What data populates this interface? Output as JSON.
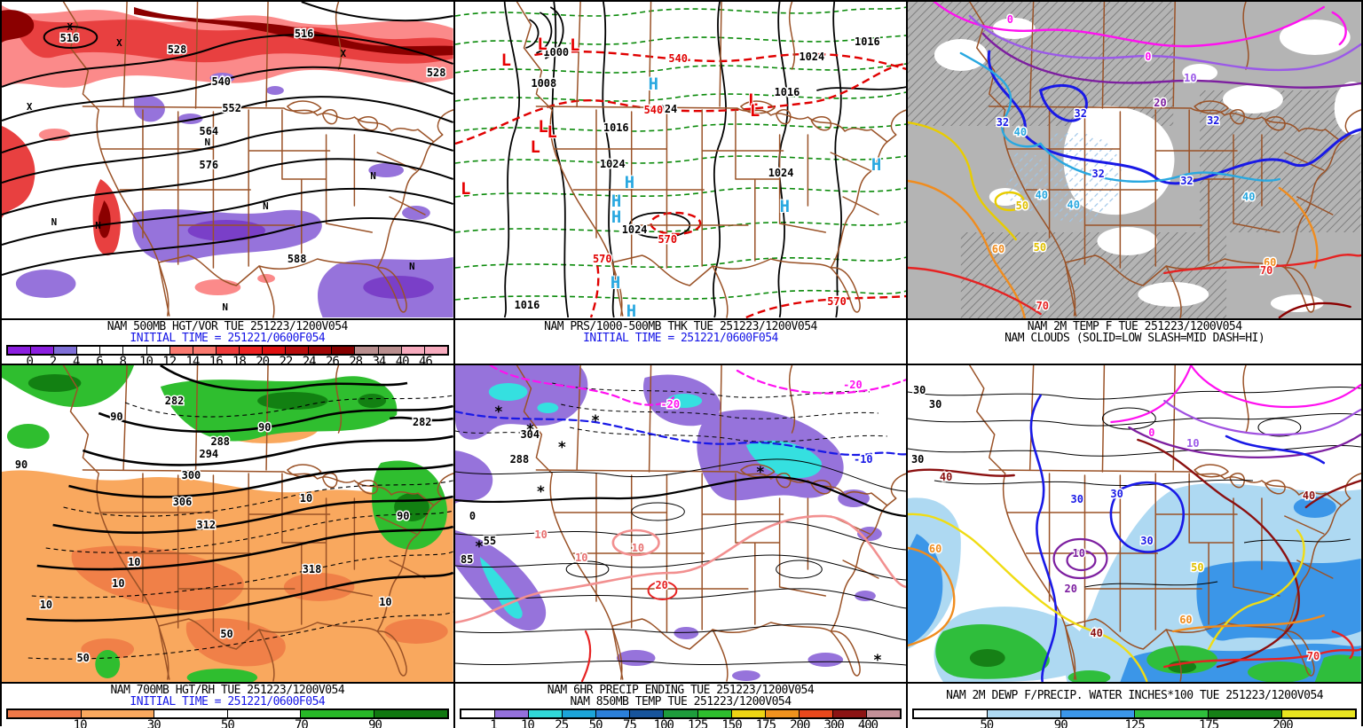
{
  "panels": [
    {
      "name": "500mb-hgt-vor",
      "captions": [
        {
          "text": "NAM 500MB HGT/VOR TUE 251223/1200V054",
          "color": "#000000"
        },
        {
          "text": "INITIAL TIME = 251221/0600F054",
          "color": "#1414E6"
        }
      ],
      "colorbar": {
        "ticks": [
          "0",
          "2",
          "4",
          "6",
          "8",
          "10",
          "12",
          "14",
          "16",
          "18",
          "20",
          "22",
          "24",
          "26",
          "28",
          "34",
          "40",
          "46"
        ],
        "segments": [
          "#8C1FE0",
          "#8C1FE0",
          "#8070D8",
          "#FFFFFF",
          "#FFFFFF",
          "#FFFFFF",
          "#FFFFFF",
          "#FB7A70",
          "#FB7A70",
          "#EE3A3A",
          "#EE2222",
          "#E01010",
          "#B80C0C",
          "#A00606",
          "#860000",
          "#B98E8E",
          "#B98E8E",
          "#F7ABBE",
          "#F7ABBE"
        ]
      },
      "labels": [
        {
          "t": "516",
          "c": "#000000"
        },
        {
          "t": "528",
          "c": "#000000"
        },
        {
          "t": "540",
          "c": "#000000"
        },
        {
          "t": "552",
          "c": "#000000"
        },
        {
          "t": "564",
          "c": "#000000"
        },
        {
          "t": "576",
          "c": "#000000"
        },
        {
          "t": "588",
          "c": "#000000"
        },
        {
          "t": "516",
          "c": "#000000"
        },
        {
          "t": "528",
          "c": "#000000"
        }
      ],
      "symbols": {
        "max": "X",
        "min": "N"
      }
    },
    {
      "name": "surface-pressure-thickness",
      "captions": [
        {
          "text": "NAM PRS/1000-500MB THK TUE 251223/1200V054",
          "color": "#000000"
        },
        {
          "text": "INITIAL TIME = 251221/0600F054",
          "color": "#1414E6"
        }
      ],
      "labels": [
        {
          "t": "1000",
          "c": "#000000"
        },
        {
          "t": "1008",
          "c": "#000000"
        },
        {
          "t": "1016",
          "c": "#000000"
        },
        {
          "t": "1024",
          "c": "#000000"
        },
        {
          "t": "1016",
          "c": "#000000"
        },
        {
          "t": "1024",
          "c": "#000000"
        },
        {
          "t": "1024",
          "c": "#000000"
        },
        {
          "t": "1024",
          "c": "#000000"
        },
        {
          "t": "1016",
          "c": "#000000"
        },
        {
          "t": "1024",
          "c": "#000000"
        },
        {
          "t": "1016",
          "c": "#000000"
        },
        {
          "t": "540",
          "c": "#E00000"
        },
        {
          "t": "540",
          "c": "#E00000"
        },
        {
          "t": "570",
          "c": "#E00000"
        },
        {
          "t": "570",
          "c": "#E00000"
        },
        {
          "t": "570",
          "c": "#E00000"
        }
      ],
      "symbols": {
        "high": "H",
        "low": "L"
      },
      "high_color": "#29A8E0",
      "low_color": "#E60000"
    },
    {
      "name": "2m-temp-clouds",
      "captions": [
        {
          "text": "NAM 2M TEMP F TUE 251223/1200V054",
          "color": "#000000"
        },
        {
          "text": "NAM CLOUDS (SOLID=LOW SLASH=MID DASH=HI)",
          "color": "#000000"
        }
      ],
      "labels": [
        {
          "t": "0",
          "c": "#FF10F0"
        },
        {
          "t": "0",
          "c": "#FF10F0"
        },
        {
          "t": "10",
          "c": "#9B59E8"
        },
        {
          "t": "20",
          "c": "#7D1FA0"
        },
        {
          "t": "32",
          "c": "#1919E6"
        },
        {
          "t": "32",
          "c": "#1919E6"
        },
        {
          "t": "32",
          "c": "#1919E6"
        },
        {
          "t": "32",
          "c": "#1919E6"
        },
        {
          "t": "32",
          "c": "#1919E6"
        },
        {
          "t": "40",
          "c": "#29A8E0"
        },
        {
          "t": "40",
          "c": "#29A8E0"
        },
        {
          "t": "40",
          "c": "#29A8E0"
        },
        {
          "t": "40",
          "c": "#29A8E0"
        },
        {
          "t": "50",
          "c": "#E0C000"
        },
        {
          "t": "50",
          "c": "#E0C000"
        },
        {
          "t": "60",
          "c": "#F08C1E"
        },
        {
          "t": "60",
          "c": "#F08C1E"
        },
        {
          "t": "70",
          "c": "#E62222"
        },
        {
          "t": "70",
          "c": "#E62222"
        }
      ]
    },
    {
      "name": "700mb-hgt-rh",
      "captions": [
        {
          "text": "NAM 700MB HGT/RH TUE 251223/1200V054",
          "color": "#000000"
        },
        {
          "text": "INITIAL TIME = 251221/0600F054",
          "color": "#1414E6"
        }
      ],
      "colorbar": {
        "ticks": [
          "10",
          "30",
          "50",
          "70",
          "90"
        ],
        "segments": [
          "#F07848",
          "#F9A85E",
          "#FFFFFF",
          "#FFFFFF",
          "#28B828",
          "#107810"
        ]
      },
      "labels": [
        {
          "t": "282",
          "c": "#000000"
        },
        {
          "t": "282",
          "c": "#000000"
        },
        {
          "t": "288",
          "c": "#000000"
        },
        {
          "t": "294",
          "c": "#000000"
        },
        {
          "t": "300",
          "c": "#000000"
        },
        {
          "t": "306",
          "c": "#000000"
        },
        {
          "t": "312",
          "c": "#000000"
        },
        {
          "t": "318",
          "c": "#000000"
        },
        {
          "t": "10",
          "c": "#000000"
        },
        {
          "t": "10",
          "c": "#000000"
        },
        {
          "t": "10",
          "c": "#000000"
        },
        {
          "t": "10",
          "c": "#000000"
        },
        {
          "t": "10",
          "c": "#000000"
        },
        {
          "t": "50",
          "c": "#000000"
        },
        {
          "t": "50",
          "c": "#000000"
        },
        {
          "t": "90",
          "c": "#000000"
        },
        {
          "t": "90",
          "c": "#000000"
        },
        {
          "t": "90",
          "c": "#000000"
        },
        {
          "t": "90",
          "c": "#000000"
        }
      ]
    },
    {
      "name": "6hr-precip-850mb-temp",
      "captions": [
        {
          "text": "NAM 6HR PRECIP ENDING TUE 251223/1200V054",
          "color": "#000000"
        },
        {
          "text": "NAM 850MB TEMP TUE 251223/1200V054",
          "color": "#000000"
        }
      ],
      "colorbar": {
        "ticks": [
          "1",
          "10",
          "25",
          "50",
          "75",
          "100",
          "125",
          "150",
          "175",
          "200",
          "300",
          "400"
        ],
        "segments": [
          "#FFFFFF",
          "#9470DB",
          "#30D8D8",
          "#1CA4D8",
          "#2B7FD9",
          "#17549C",
          "#1E9C3C",
          "#2EBE2E",
          "#EDD514",
          "#F0921E",
          "#E8481C",
          "#8C1414",
          "#C49098"
        ]
      },
      "labels": [
        {
          "t": "-20",
          "c": "#FF10F0"
        },
        {
          "t": "-20",
          "c": "#FF10F0"
        },
        {
          "t": "-10",
          "c": "#1919E6"
        },
        {
          "t": "0",
          "c": "#000000"
        },
        {
          "t": "10",
          "c": "#E87070"
        },
        {
          "t": "10",
          "c": "#E87070"
        },
        {
          "t": "10",
          "c": "#E87070"
        },
        {
          "t": "20",
          "c": "#E62222"
        },
        {
          "t": "304",
          "c": "#000000"
        },
        {
          "t": "288",
          "c": "#000000"
        },
        {
          "t": "85",
          "c": "#000000"
        },
        {
          "t": "55",
          "c": "#000000"
        }
      ],
      "symbols": {
        "snow": "*"
      }
    },
    {
      "name": "2m-dewpoint-precip-water",
      "captions": [
        {
          "text": "NAM 2M DEWP F/PRECIP. WATER INCHES*100 TUE 251223/1200V054",
          "color": "#000000"
        }
      ],
      "colorbar": {
        "ticks": [
          "50",
          "90",
          "125",
          "175",
          "200"
        ],
        "segments": [
          "#FFFFFF",
          "#AED9F2",
          "#3B96E8",
          "#2FBE3C",
          "#168016",
          "#E8E420"
        ]
      },
      "labels": [
        {
          "t": "30",
          "c": "#000000"
        },
        {
          "t": "30",
          "c": "#000000"
        },
        {
          "t": "30",
          "c": "#000000"
        },
        {
          "t": "30",
          "c": "#1919E6"
        },
        {
          "t": "30",
          "c": "#1919E6"
        },
        {
          "t": "30",
          "c": "#1919E6"
        },
        {
          "t": "0",
          "c": "#FF10F0"
        },
        {
          "t": "10",
          "c": "#9B59E8"
        },
        {
          "t": "10",
          "c": "#7D1FA0"
        },
        {
          "t": "20",
          "c": "#7D1FA0"
        },
        {
          "t": "40",
          "c": "#8B1010"
        },
        {
          "t": "40",
          "c": "#8B1010"
        },
        {
          "t": "40",
          "c": "#8B1010"
        },
        {
          "t": "50",
          "c": "#E0C000"
        },
        {
          "t": "60",
          "c": "#F08C1E"
        },
        {
          "t": "60",
          "c": "#F08C1E"
        },
        {
          "t": "70",
          "c": "#E62222"
        }
      ]
    }
  ],
  "palette": {
    "map_outline": "#9A5227",
    "initial_time_blue": "#1414E6",
    "cloud_gray": "#B4B4B4",
    "precip_purple": "#9673DB",
    "precip_cyan": "#35E0E0",
    "rh_green": "#2FBE2F",
    "rh_orange": "#F9A85E"
  }
}
